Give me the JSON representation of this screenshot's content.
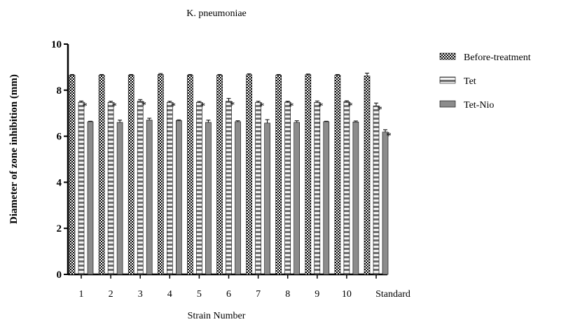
{
  "chart_data": {
    "type": "bar",
    "title": "K. pneumoniae",
    "xlabel": "Strain Number",
    "ylabel": "Diameter of zone inhibition (mm)",
    "ylim": [
      0,
      10
    ],
    "yticks": [
      "0",
      "2",
      "4",
      "6",
      "8",
      "10"
    ],
    "categories": [
      "1",
      "2",
      "3",
      "4",
      "5",
      "6",
      "7",
      "8",
      "9",
      "10",
      "Standard"
    ],
    "legend_position": "top-right",
    "significance_marker": "*",
    "series": [
      {
        "name": "Before-treatment",
        "pattern": "checkerboard",
        "values": [
          8.65,
          8.65,
          8.65,
          8.68,
          8.65,
          8.65,
          8.67,
          8.65,
          8.67,
          8.65,
          8.62
        ],
        "errors": [
          0.03,
          0.03,
          0.03,
          0.04,
          0.03,
          0.03,
          0.04,
          0.03,
          0.03,
          0.03,
          0.12
        ],
        "significant": [
          false,
          false,
          false,
          false,
          false,
          false,
          false,
          false,
          false,
          false,
          false
        ]
      },
      {
        "name": "Tet",
        "pattern": "striped",
        "values": [
          7.48,
          7.47,
          7.52,
          7.47,
          7.47,
          7.52,
          7.47,
          7.48,
          7.47,
          7.5,
          7.32
        ],
        "errors": [
          0.05,
          0.05,
          0.07,
          0.05,
          0.04,
          0.12,
          0.05,
          0.04,
          0.06,
          0.04,
          0.12
        ],
        "significant": [
          true,
          true,
          true,
          true,
          true,
          true,
          true,
          true,
          true,
          true,
          true
        ]
      },
      {
        "name": "Tet-Nio",
        "pattern": "solid",
        "values": [
          6.63,
          6.6,
          6.7,
          6.68,
          6.6,
          6.63,
          6.57,
          6.6,
          6.63,
          6.62,
          6.18
        ],
        "errors": [
          0.02,
          0.1,
          0.08,
          0.03,
          0.1,
          0.04,
          0.15,
          0.07,
          0.02,
          0.04,
          0.1
        ],
        "significant": [
          false,
          false,
          false,
          false,
          false,
          false,
          false,
          false,
          false,
          false,
          true
        ]
      }
    ],
    "colors": {
      "solid_fill": "#8c8c8c",
      "stripe_dark": "#6e6e6e",
      "axis": "#000000"
    }
  }
}
